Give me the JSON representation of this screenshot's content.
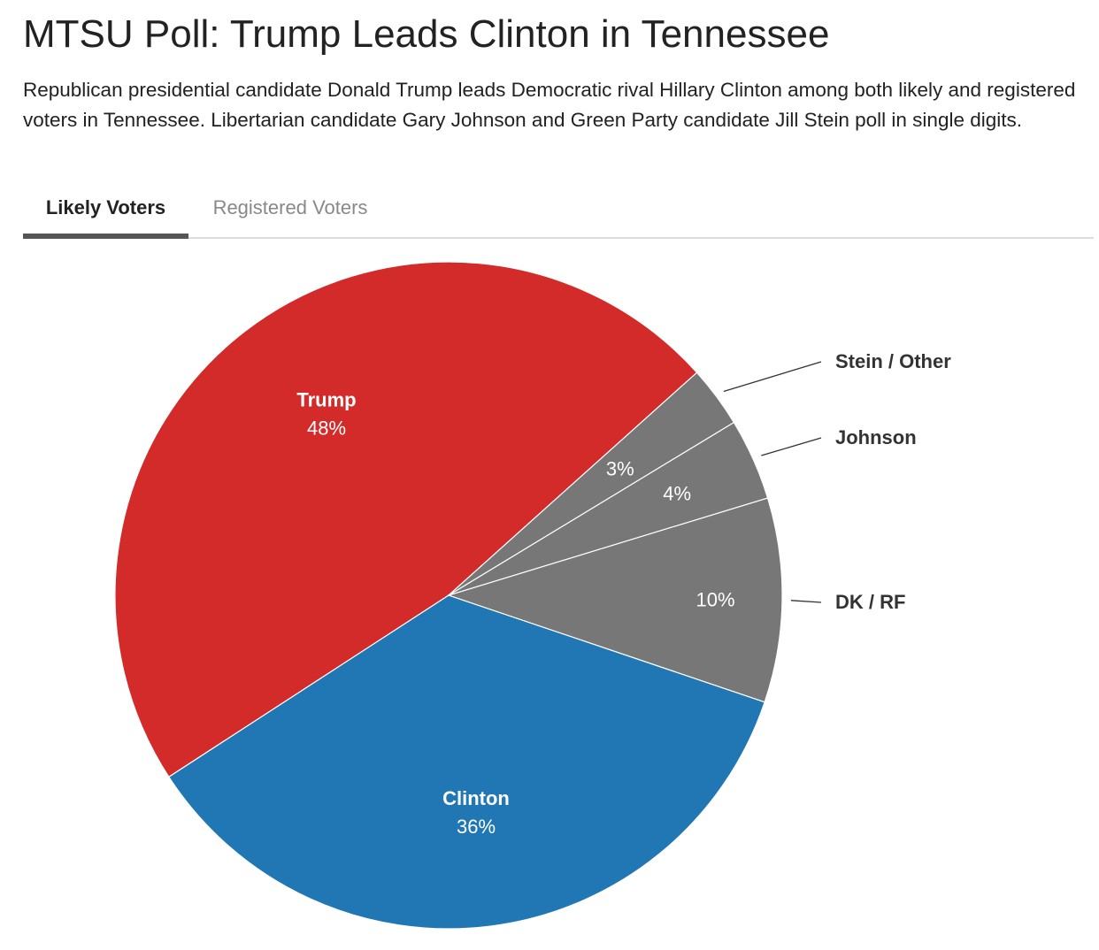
{
  "header": {
    "title": "MTSU Poll: Trump Leads Clinton in Tennessee",
    "subtitle": "Republican presidential candidate Donald Trump leads Democratic rival Hillary Clinton among both likely and registered voters in Tennessee. Libertarian candidate Gary Johnson and Green Party candidate Jill Stein poll in single digits."
  },
  "tabs": [
    {
      "label": "Likely Voters",
      "active": true
    },
    {
      "label": "Registered Voters",
      "active": false
    }
  ],
  "chart_data": {
    "type": "pie",
    "title": "MTSU Poll: Trump Leads Clinton in Tennessee",
    "slices": [
      {
        "name": "Trump",
        "value": 48,
        "label": "48%",
        "color": "#d32a2a",
        "label_position": "inside"
      },
      {
        "name": "Stein / Other",
        "value": 3,
        "label": "3%",
        "color": "#777777",
        "label_position": "outside"
      },
      {
        "name": "Johnson",
        "value": 4,
        "label": "4%",
        "color": "#777777",
        "label_position": "outside"
      },
      {
        "name": "DK / RF",
        "value": 10,
        "label": "10%",
        "color": "#777777",
        "label_position": "outside"
      },
      {
        "name": "Clinton",
        "value": 36,
        "label": "36%",
        "color": "#2077b4",
        "label_position": "inside"
      }
    ],
    "start_angle_deg": 237,
    "direction": "clockwise",
    "legend": "none"
  }
}
